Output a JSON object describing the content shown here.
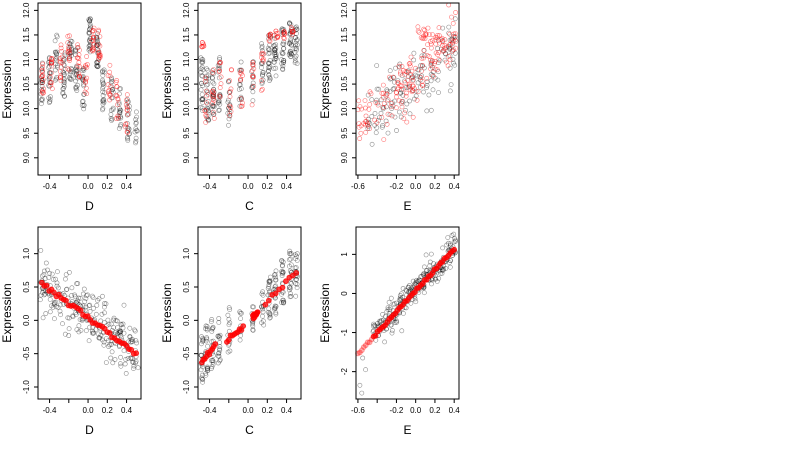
{
  "colors": {
    "black_points": "#000000",
    "red_points": "#ff0000",
    "background": "#ffffff"
  },
  "chart_data": [
    {
      "type": "scatter",
      "xlabel": "D",
      "ylabel": "Expression",
      "xlim": [
        -0.52,
        0.55
      ],
      "ylim": [
        8.65,
        12.15
      ],
      "xticks": [
        -0.4,
        -0.2,
        0.0,
        0.2,
        0.4
      ],
      "xtick_labels": [
        "-0.4",
        "",
        "0.0",
        "0.2",
        "0.4"
      ],
      "yticks": [
        9.0,
        9.5,
        10.0,
        10.5,
        11.0,
        11.5,
        12.0
      ],
      "ytick_labels": [
        "9.0",
        "9.5",
        "10.0",
        "10.5",
        "11.0",
        "11.5",
        "12.0"
      ],
      "grid": false,
      "seed": 11,
      "black_columns": [
        [
          -0.48,
          10.5,
          0.45,
          20
        ],
        [
          -0.4,
          10.6,
          0.5,
          22
        ],
        [
          -0.33,
          11.0,
          0.5,
          18
        ],
        [
          -0.25,
          10.7,
          0.45,
          24
        ],
        [
          -0.18,
          11.0,
          0.5,
          24
        ],
        [
          -0.12,
          10.8,
          0.45,
          22
        ],
        [
          -0.05,
          10.4,
          0.45,
          20
        ],
        [
          0.02,
          11.5,
          0.35,
          26
        ],
        [
          0.1,
          11.2,
          0.35,
          26
        ],
        [
          0.16,
          10.4,
          0.45,
          22
        ],
        [
          0.25,
          10.2,
          0.45,
          18
        ],
        [
          0.33,
          10.0,
          0.45,
          18
        ],
        [
          0.42,
          9.8,
          0.45,
          18
        ],
        [
          0.5,
          9.6,
          0.35,
          12
        ]
      ],
      "red_columns": [
        [
          -0.47,
          10.6,
          0.35,
          14
        ],
        [
          -0.38,
          10.8,
          0.4,
          14
        ],
        [
          -0.28,
          10.9,
          0.4,
          14
        ],
        [
          -0.2,
          11.1,
          0.4,
          14
        ],
        [
          -0.1,
          10.9,
          0.4,
          14
        ],
        [
          -0.02,
          10.7,
          0.4,
          12
        ],
        [
          0.05,
          11.4,
          0.25,
          16
        ],
        [
          0.12,
          11.3,
          0.3,
          14
        ],
        [
          0.22,
          10.5,
          0.4,
          12
        ],
        [
          0.3,
          10.2,
          0.4,
          12
        ],
        [
          0.4,
          9.9,
          0.4,
          12
        ]
      ]
    },
    {
      "type": "scatter",
      "xlabel": "C",
      "ylabel": "Expression",
      "xlim": [
        -0.52,
        0.55
      ],
      "ylim": [
        8.65,
        12.15
      ],
      "xticks": [
        -0.4,
        -0.2,
        0.0,
        0.2,
        0.4
      ],
      "xtick_labels": [
        "-0.4",
        "",
        "0.0",
        "0.2",
        "0.4"
      ],
      "yticks": [
        9.0,
        9.5,
        10.0,
        10.5,
        11.0,
        11.5,
        12.0
      ],
      "ytick_labels": [
        "9.0",
        "9.5",
        "10.0",
        "10.5",
        "11.0",
        "11.5",
        "12.0"
      ],
      "grid": false,
      "seed": 23,
      "black_columns": [
        [
          -0.48,
          10.5,
          0.55,
          26
        ],
        [
          -0.42,
          10.3,
          0.55,
          24
        ],
        [
          -0.36,
          10.3,
          0.5,
          24
        ],
        [
          -0.3,
          10.5,
          0.55,
          20
        ],
        [
          -0.2,
          10.2,
          0.55,
          16
        ],
        [
          -0.08,
          10.5,
          0.5,
          14
        ],
        [
          0.05,
          10.6,
          0.45,
          12
        ],
        [
          0.15,
          10.9,
          0.45,
          16
        ],
        [
          0.22,
          11.0,
          0.5,
          24
        ],
        [
          0.28,
          11.1,
          0.45,
          24
        ],
        [
          0.36,
          11.2,
          0.45,
          24
        ],
        [
          0.44,
          11.4,
          0.35,
          26
        ],
        [
          0.5,
          11.3,
          0.4,
          22
        ]
      ],
      "red_columns": [
        [
          -0.47,
          11.3,
          0.05,
          8
        ],
        [
          -0.44,
          10.2,
          0.5,
          10
        ],
        [
          -0.36,
          10.3,
          0.5,
          12
        ],
        [
          -0.29,
          10.5,
          0.5,
          10
        ],
        [
          -0.18,
          10.3,
          0.5,
          10
        ],
        [
          -0.07,
          10.4,
          0.45,
          10
        ],
        [
          0.05,
          10.5,
          0.45,
          10
        ],
        [
          0.15,
          10.8,
          0.45,
          10
        ],
        [
          0.22,
          11.45,
          0.08,
          8
        ],
        [
          0.3,
          11.5,
          0.08,
          8
        ],
        [
          0.38,
          11.5,
          0.08,
          8
        ],
        [
          0.46,
          11.6,
          0.1,
          8
        ]
      ]
    },
    {
      "type": "scatter",
      "xlabel": "E",
      "ylabel": "Expression",
      "xlim": [
        -0.62,
        0.45
      ],
      "ylim": [
        8.65,
        12.15
      ],
      "xticks": [
        -0.6,
        -0.4,
        -0.2,
        0.0,
        0.2,
        0.4
      ],
      "xtick_labels": [
        "-0.6",
        "",
        "-0.2",
        "0.0",
        "0.2",
        "0.4"
      ],
      "yticks": [
        9.0,
        9.5,
        10.0,
        10.5,
        11.0,
        11.5,
        12.0
      ],
      "ytick_labels": [
        "9.0",
        "9.5",
        "10.0",
        "10.5",
        "11.0",
        "11.5",
        "12.0"
      ],
      "grid": false,
      "seed": 37,
      "black_cloud": {
        "x_range": [
          -0.5,
          0.42
        ],
        "y_intercept": 10.6,
        "slope": 1.6,
        "noise": 0.55,
        "n": 150
      },
      "red_cloud": {
        "x_range": [
          -0.6,
          0.42
        ],
        "y_intercept": 10.7,
        "slope": 1.8,
        "noise": 0.5,
        "n": 150
      },
      "red_band": {
        "x_range": [
          0.02,
          0.4
        ],
        "y": [
          11.55,
          11.25
        ],
        "n": 30
      }
    },
    {
      "type": "scatter",
      "xlabel": "D",
      "ylabel": "Expression",
      "xlim": [
        -0.52,
        0.55
      ],
      "ylim": [
        -1.18,
        1.4
      ],
      "xticks": [
        -0.4,
        -0.2,
        0.0,
        0.2,
        0.4
      ],
      "xtick_labels": [
        "-0.4",
        "",
        "0.0",
        "0.2",
        "0.4"
      ],
      "yticks": [
        -1.0,
        -0.5,
        0.0,
        0.5,
        1.0
      ],
      "ytick_labels": [
        "-1.0",
        "-0.5",
        "0.0",
        "0.5",
        "1.0"
      ],
      "grid": false,
      "seed": 51,
      "black_cloud": {
        "x_range": [
          -0.5,
          0.52
        ],
        "y_intercept": 0.05,
        "slope": -1.0,
        "noise": 0.32,
        "n": 260
      },
      "fit_line": {
        "x": [
          -0.48,
          0.5
        ],
        "y": [
          0.55,
          -0.5
        ],
        "n": 40
      }
    },
    {
      "type": "scatter",
      "xlabel": "C",
      "ylabel": "Expression",
      "xlim": [
        -0.52,
        0.55
      ],
      "ylim": [
        -1.18,
        1.4
      ],
      "xticks": [
        -0.4,
        -0.2,
        0.0,
        0.2,
        0.4
      ],
      "xtick_labels": [
        "-0.4",
        "",
        "0.0",
        "0.2",
        "0.4"
      ],
      "yticks": [
        -1.0,
        -0.5,
        0.0,
        0.5,
        1.0
      ],
      "ytick_labels": [
        "-1.0",
        "-0.5",
        "0.0",
        "0.5",
        "1.0"
      ],
      "grid": false,
      "seed": 67,
      "black_columns": [
        [
          -0.48,
          -0.55,
          0.38,
          22
        ],
        [
          -0.43,
          -0.45,
          0.38,
          22
        ],
        [
          -0.37,
          -0.35,
          0.38,
          20
        ],
        [
          -0.3,
          -0.3,
          0.35,
          18
        ],
        [
          -0.2,
          -0.15,
          0.35,
          14
        ],
        [
          -0.08,
          -0.1,
          0.3,
          10
        ],
        [
          0.05,
          0.1,
          0.3,
          12
        ],
        [
          0.15,
          0.2,
          0.3,
          14
        ],
        [
          0.22,
          0.3,
          0.35,
          22
        ],
        [
          0.28,
          0.4,
          0.35,
          22
        ],
        [
          0.36,
          0.55,
          0.35,
          22
        ],
        [
          0.44,
          0.7,
          0.35,
          22
        ],
        [
          0.5,
          0.7,
          0.35,
          20
        ]
      ],
      "fit_segments": [
        {
          "x": [
            -0.48,
            -0.34
          ],
          "y": [
            -0.62,
            -0.38
          ]
        },
        {
          "x": [
            -0.22,
            -0.05
          ],
          "y": [
            -0.3,
            -0.1
          ]
        },
        {
          "x": [
            0.05,
            0.1
          ],
          "y": [
            0.05,
            0.12
          ]
        },
        {
          "x": [
            0.18,
            0.5
          ],
          "y": [
            0.25,
            0.72
          ]
        }
      ]
    },
    {
      "type": "scatter",
      "xlabel": "E",
      "ylabel": "Expression",
      "xlim": [
        -0.62,
        0.45
      ],
      "ylim": [
        -2.7,
        1.7
      ],
      "xticks": [
        -0.6,
        -0.4,
        -0.2,
        0.0,
        0.2,
        0.4
      ],
      "xtick_labels": [
        "-0.6",
        "",
        "-0.2",
        "0.0",
        "0.2",
        "0.4"
      ],
      "yticks": [
        -2,
        -1,
        0,
        1
      ],
      "ytick_labels": [
        "-2",
        "-1",
        "0",
        "1"
      ],
      "grid": false,
      "seed": 83,
      "black_cloud": {
        "x_range": [
          -0.45,
          0.42
        ],
        "y_intercept": 0.1,
        "slope": 2.6,
        "noise": 0.32,
        "n": 260
      },
      "black_outliers": [
        [
          -0.58,
          -2.35
        ],
        [
          -0.56,
          -2.55
        ],
        [
          -0.55,
          -1.65
        ],
        [
          -0.52,
          -1.95
        ]
      ],
      "fit_line": {
        "x": [
          -0.6,
          0.4
        ],
        "y": [
          -1.55,
          1.15
        ],
        "n": 50
      }
    }
  ]
}
